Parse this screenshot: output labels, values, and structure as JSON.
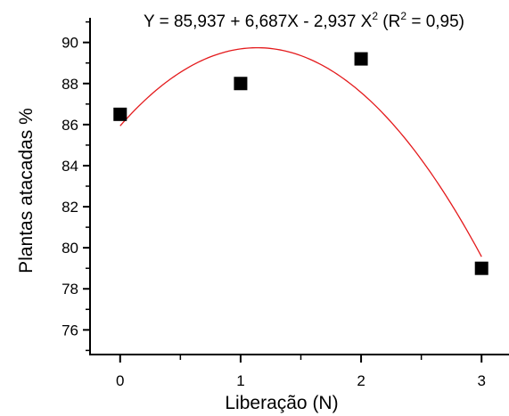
{
  "chart_data": {
    "type": "scatter",
    "title": {
      "prefix": "Y = 85,937 + 6,687X - 2,937 X",
      "exp1": "2",
      "middle": " (R",
      "exp2": "2",
      "suffix": " = 0,95)"
    },
    "xlabel": "Liberação (N)",
    "ylabel": "Plantas atacadas %",
    "xlim": [
      -0.25,
      3.25
    ],
    "ylim": [
      74.8,
      91.2
    ],
    "x_ticks": [
      0,
      1,
      2,
      3
    ],
    "x_tick_labels": [
      "0",
      "1",
      "2",
      "3"
    ],
    "x_minor_ticks": [
      0.5,
      1.5,
      2.5
    ],
    "y_ticks": [
      76,
      78,
      80,
      82,
      84,
      86,
      88,
      90
    ],
    "y_tick_labels": [
      "76",
      "78",
      "80",
      "82",
      "84",
      "86",
      "88",
      "90"
    ],
    "y_minor_ticks": [
      75,
      77,
      79,
      81,
      83,
      85,
      87,
      89,
      91
    ],
    "points": [
      {
        "x": 0,
        "y": 86.5
      },
      {
        "x": 1,
        "y": 88.0
      },
      {
        "x": 2,
        "y": 89.2
      },
      {
        "x": 3,
        "y": 79.0
      }
    ],
    "fit": {
      "a": 85.937,
      "b": 6.687,
      "c": -2.937,
      "x_range": [
        0,
        3
      ]
    },
    "marker_color": "#000000",
    "fit_color": "#e41a1c",
    "axis_color": "#000000",
    "grid": false,
    "legend": "none"
  }
}
